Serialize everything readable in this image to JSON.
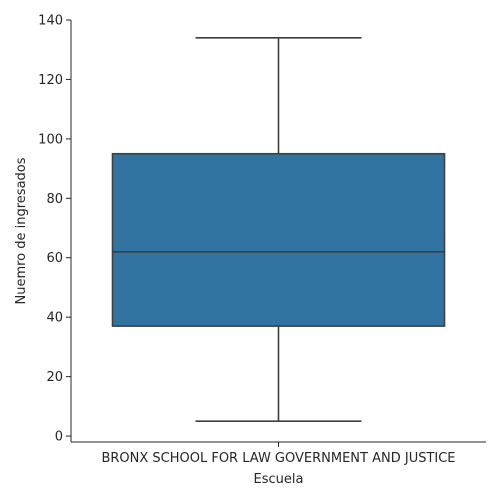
{
  "chart_data": {
    "type": "box",
    "categories": [
      "BRONX SCHOOL FOR LAW GOVERNMENT AND JUSTICE"
    ],
    "series": [
      {
        "whisker_low": 5,
        "q1": 37,
        "median": 62,
        "q3": 95,
        "whisker_high": 134
      }
    ],
    "xlabel": "Escuela",
    "ylabel": "Nuemro de ingresados",
    "ylim": [
      -2,
      140
    ],
    "yticks": [
      0,
      20,
      40,
      60,
      80,
      100,
      120,
      140
    ],
    "grid": false,
    "legend": "none",
    "box_color": "#3274a1",
    "line_color": "#3f3f3f",
    "axis_color": "#262626"
  }
}
